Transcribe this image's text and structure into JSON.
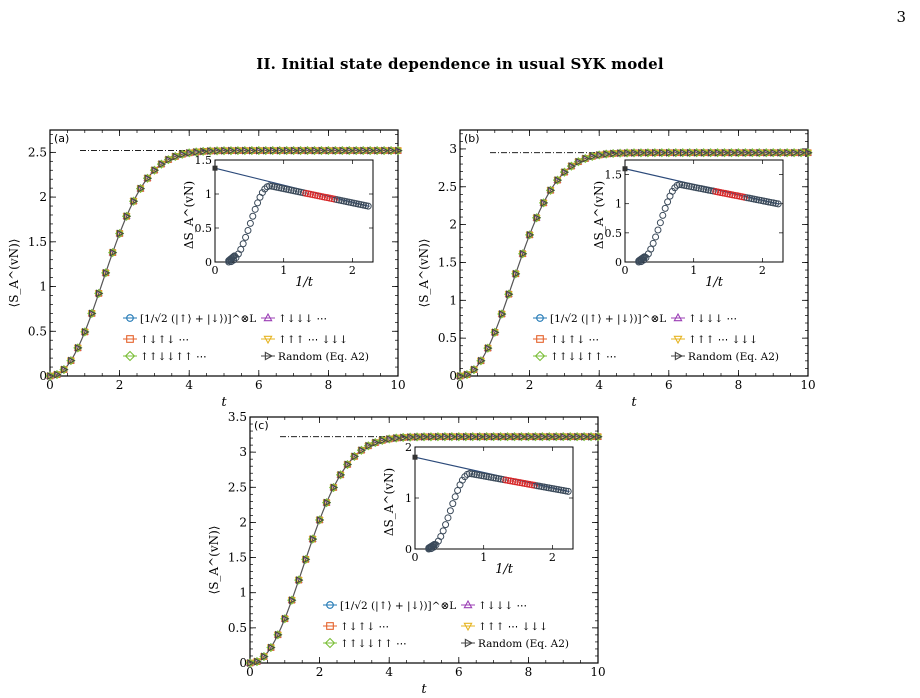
{
  "page": {
    "page_number": "3",
    "section_heading": "II.   Initial state dependence in usual SYK model"
  },
  "colors": {
    "blue": "#1f77b4",
    "orange": "#e5622b",
    "green": "#7cbf3a",
    "purple": "#9b3fb5",
    "yellow": "#e6b422",
    "gray": "#444444",
    "red_fit": "#d62728"
  },
  "chart_data": [
    {
      "type": "line",
      "panel_label": "(a)",
      "xlabel": "t",
      "ylabel": "⟨S_A^(vN)⟩",
      "xlim": [
        0,
        10
      ],
      "ylim": [
        0,
        2.75
      ],
      "x_ticks": [
        0,
        2,
        4,
        6,
        8,
        10
      ],
      "y_ticks": [
        0,
        0.5,
        1,
        1.5,
        2,
        2.5
      ],
      "y_tick_labels": [
        "0",
        "0.5",
        "1",
        "1.5",
        "2",
        "2.5"
      ],
      "saturation": 2.52,
      "legend": [
        {
          "name": "[1/√2 (|↑⟩ + |↓⟩)]^⊗L",
          "marker": "circle",
          "color_key": "blue"
        },
        {
          "name": "↑↓↓↓ ⋯",
          "marker": "triangle-up",
          "color_key": "purple"
        },
        {
          "name": "↑↓↑↓ ⋯",
          "marker": "square",
          "color_key": "orange"
        },
        {
          "name": "↑↑↑ ⋯ ↓↓↓",
          "marker": "triangle-down",
          "color_key": "yellow"
        },
        {
          "name": "↑↑↓↓↑↑ ⋯",
          "marker": "diamond",
          "color_key": "green"
        },
        {
          "name": "Random (Eq. A2)",
          "marker": "triangle-right",
          "color_key": "gray"
        }
      ],
      "inset": {
        "xlabel": "1/t",
        "ylabel": "ΔS_A^(vN)",
        "xlim": [
          0,
          2.3
        ],
        "ylim": [
          0,
          1.5
        ],
        "x_ticks": [
          0,
          1,
          2
        ],
        "y_ticks": [
          0,
          0.5,
          1,
          1.5
        ],
        "y_tick_labels": [
          "0",
          "0.5",
          "1",
          "1.5"
        ],
        "fit_intercept": 1.38,
        "fit_slope": -0.25,
        "peak_x": 0.8,
        "peak_y": 1.12,
        "start_x": 0.2
      }
    },
    {
      "type": "line",
      "panel_label": "(b)",
      "xlabel": "t",
      "ylabel": "⟨S_A^(vN)⟩",
      "xlim": [
        0,
        10
      ],
      "ylim": [
        0,
        3.25
      ],
      "x_ticks": [
        0,
        2,
        4,
        6,
        8,
        10
      ],
      "y_ticks": [
        0,
        0.5,
        1,
        1.5,
        2,
        2.5,
        3
      ],
      "y_tick_labels": [
        "0",
        "0.5",
        "1",
        "1.5",
        "2",
        "2.5",
        "3"
      ],
      "saturation": 2.95,
      "legend": [
        {
          "name": "[1/√2 (|↑⟩ + |↓⟩)]^⊗L",
          "marker": "circle",
          "color_key": "blue"
        },
        {
          "name": "↑↓↓↓ ⋯",
          "marker": "triangle-up",
          "color_key": "purple"
        },
        {
          "name": "↑↓↑↓ ⋯",
          "marker": "square",
          "color_key": "orange"
        },
        {
          "name": "↑↑↑ ⋯ ↓↓↓",
          "marker": "triangle-down",
          "color_key": "yellow"
        },
        {
          "name": "↑↑↓↓↑↑ ⋯",
          "marker": "diamond",
          "color_key": "green"
        },
        {
          "name": "Random (Eq. A2)",
          "marker": "triangle-right",
          "color_key": "gray"
        }
      ],
      "inset": {
        "xlabel": "1/t",
        "ylabel": "ΔS_A^(vN)",
        "xlim": [
          0,
          2.3
        ],
        "ylim": [
          0,
          1.75
        ],
        "x_ticks": [
          0,
          1,
          2
        ],
        "y_ticks": [
          0,
          0.5,
          1,
          1.5
        ],
        "y_tick_labels": [
          "0",
          "0.5",
          "1",
          "1.5"
        ],
        "fit_intercept": 1.6,
        "fit_slope": -0.27,
        "peak_x": 0.8,
        "peak_y": 1.33,
        "start_x": 0.2
      }
    },
    {
      "type": "line",
      "panel_label": "(c)",
      "xlabel": "t",
      "ylabel": "⟨S_A^(vN)⟩",
      "xlim": [
        0,
        10
      ],
      "ylim": [
        0,
        3.5
      ],
      "x_ticks": [
        0,
        2,
        4,
        6,
        8,
        10
      ],
      "y_ticks": [
        0,
        0.5,
        1,
        1.5,
        2,
        2.5,
        3,
        3.5
      ],
      "y_tick_labels": [
        "0",
        "0.5",
        "1",
        "1.5",
        "2",
        "2.5",
        "3",
        "3.5"
      ],
      "saturation": 3.22,
      "legend": [
        {
          "name": "[1/√2 (|↑⟩ + |↓⟩)]^⊗L",
          "marker": "circle",
          "color_key": "blue"
        },
        {
          "name": "↑↓↓↓ ⋯",
          "marker": "triangle-up",
          "color_key": "purple"
        },
        {
          "name": "↑↓↑↓ ⋯",
          "marker": "square",
          "color_key": "orange"
        },
        {
          "name": "↑↑↑ ⋯ ↓↓↓",
          "marker": "triangle-down",
          "color_key": "yellow"
        },
        {
          "name": "↑↑↓↓↑↑ ⋯",
          "marker": "diamond",
          "color_key": "green"
        },
        {
          "name": "Random (Eq. A2)",
          "marker": "triangle-right",
          "color_key": "gray"
        }
      ],
      "inset": {
        "xlabel": "1/t",
        "ylabel": "ΔS_A^(vN)",
        "xlim": [
          0,
          2.3
        ],
        "ylim": [
          0,
          2.0
        ],
        "x_ticks": [
          0,
          1,
          2
        ],
        "y_ticks": [
          0,
          1,
          2
        ],
        "y_tick_labels": [
          "0",
          "1",
          "2"
        ],
        "fit_intercept": 1.8,
        "fit_slope": -0.3,
        "peak_x": 0.8,
        "peak_y": 1.48,
        "start_x": 0.2
      }
    }
  ]
}
